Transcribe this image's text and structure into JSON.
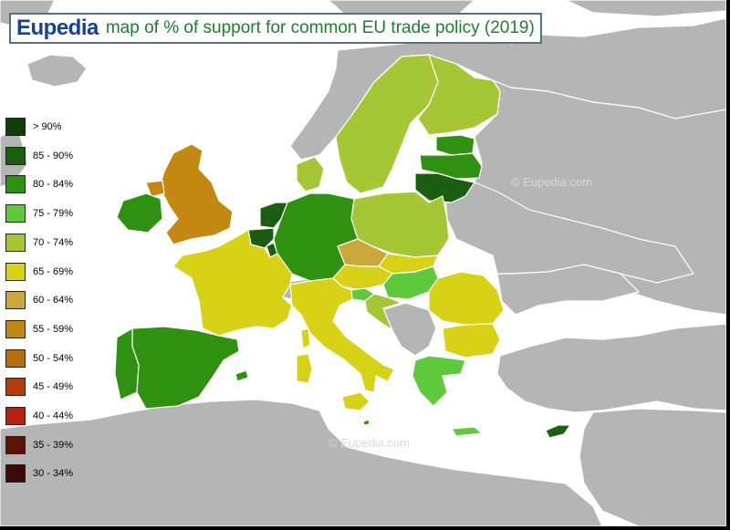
{
  "header": {
    "brand": "Eupedia",
    "title": "map of % of support for common EU trade policy (2019)"
  },
  "legend": [
    {
      "label": "> 90%",
      "color": "#0f3d0c"
    },
    {
      "label": "85 - 90%",
      "color": "#1b5e12"
    },
    {
      "label": "80 - 84%",
      "color": "#2e9210"
    },
    {
      "label": "75 - 79%",
      "color": "#5fc93c"
    },
    {
      "label": "70 - 74%",
      "color": "#a5c635"
    },
    {
      "label": "65 - 69%",
      "color": "#d7d215"
    },
    {
      "label": "60 - 64%",
      "color": "#c9a73a"
    },
    {
      "label": "55 - 59%",
      "color": "#c48810"
    },
    {
      "label": "50 - 54%",
      "color": "#b86d0c"
    },
    {
      "label": "45 - 49%",
      "color": "#b53d0a"
    },
    {
      "label": "40 - 44%",
      "color": "#b8210e"
    },
    {
      "label": "35 - 39%",
      "color": "#5e1106"
    },
    {
      "label": "30 - 34%",
      "color": "#3a0a04"
    }
  ],
  "watermarks": [
    "©  Eupedia.com",
    "©  Eupedia.com"
  ],
  "colors": {
    "sea": "#ffffff",
    "non_eu_land": "#b5b5b5",
    "border": "#ffffff",
    "frame_shadow": "#000000"
  }
}
